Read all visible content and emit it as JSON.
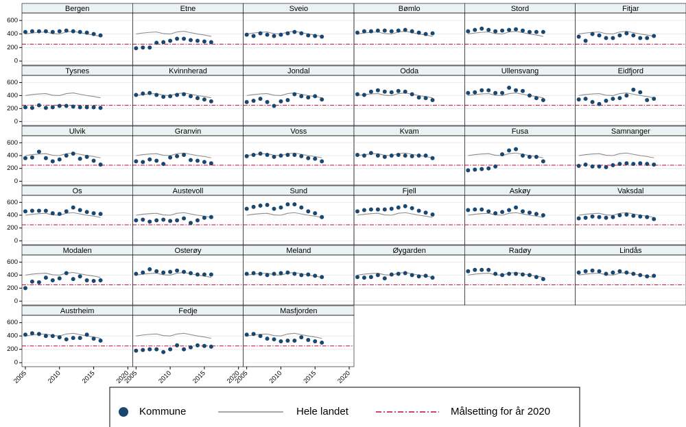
{
  "chart_data": {
    "type": "scatter",
    "x": [
      2005,
      2006,
      2007,
      2008,
      2009,
      2010,
      2011,
      2012,
      2013,
      2014,
      2015,
      2016
    ],
    "xlim": [
      2004.5,
      2020.7
    ],
    "xticks": [
      2005,
      2010,
      2015,
      2020
    ],
    "ylim": [
      -60,
      710
    ],
    "yticks": [
      0,
      200,
      400,
      600
    ],
    "grid": true,
    "series": [
      {
        "name": "Kommune",
        "color": "#1a476f"
      },
      {
        "name": "Hele landet",
        "color": "#8c8c8c",
        "values": [
          400,
          415,
          425,
          430,
          405,
          400,
          430,
          440,
          420,
          400,
          385,
          365
        ]
      },
      {
        "name": "Målsetting for år 2020",
        "color": "#c10534",
        "value": 250
      }
    ],
    "panels": [
      {
        "title": "Bergen",
        "values": [
          430,
          440,
          440,
          440,
          430,
          440,
          450,
          440,
          430,
          420,
          400,
          380
        ]
      },
      {
        "title": "Etne",
        "values": [
          190,
          200,
          200,
          270,
          280,
          300,
          330,
          330,
          310,
          300,
          290,
          280
        ]
      },
      {
        "title": "Sveio",
        "values": [
          390,
          370,
          410,
          390,
          370,
          390,
          410,
          430,
          410,
          380,
          370,
          360
        ]
      },
      {
        "title": "Bømlo",
        "values": [
          420,
          440,
          440,
          450,
          450,
          440,
          450,
          460,
          440,
          420,
          400,
          410
        ]
      },
      {
        "title": "Stord",
        "values": [
          440,
          460,
          480,
          460,
          440,
          450,
          460,
          470,
          450,
          430,
          430,
          430
        ]
      },
      {
        "title": "Fitjar",
        "values": [
          360,
          300,
          400,
          380,
          340,
          340,
          380,
          410,
          380,
          340,
          340,
          370
        ]
      },
      {
        "title": "Tysnes",
        "values": [
          220,
          210,
          250,
          210,
          220,
          240,
          240,
          230,
          220,
          220,
          220,
          210
        ]
      },
      {
        "title": "Kvinnherad",
        "values": [
          410,
          430,
          440,
          410,
          380,
          390,
          410,
          420,
          390,
          360,
          340,
          310
        ]
      },
      {
        "title": "Jondal",
        "values": [
          300,
          320,
          350,
          300,
          240,
          310,
          330,
          420,
          390,
          370,
          390,
          340
        ]
      },
      {
        "title": "Odda",
        "values": [
          420,
          410,
          460,
          480,
          460,
          450,
          470,
          460,
          420,
          370,
          360,
          330
        ]
      },
      {
        "title": "Ullensvang",
        "values": [
          440,
          450,
          480,
          480,
          440,
          440,
          520,
          480,
          470,
          400,
          360,
          330
        ]
      },
      {
        "title": "Eidfjord",
        "values": [
          340,
          350,
          300,
          270,
          320,
          350,
          360,
          400,
          490,
          450,
          330,
          350
        ]
      },
      {
        "title": "Ulvik",
        "values": [
          360,
          370,
          460,
          360,
          310,
          340,
          400,
          430,
          350,
          380,
          320,
          260
        ]
      },
      {
        "title": "Granvin",
        "values": [
          310,
          300,
          340,
          320,
          270,
          370,
          390,
          410,
          330,
          320,
          300,
          280
        ]
      },
      {
        "title": "Voss",
        "values": [
          390,
          410,
          430,
          410,
          380,
          400,
          410,
          410,
          390,
          360,
          350,
          310
        ]
      },
      {
        "title": "Kvam",
        "values": [
          410,
          400,
          440,
          400,
          380,
          400,
          410,
          400,
          390,
          400,
          400,
          360
        ]
      },
      {
        "title": "Fusa",
        "values": [
          170,
          180,
          190,
          200,
          230,
          420,
          480,
          500,
          400,
          380,
          380,
          310
        ]
      },
      {
        "title": "Samnanger",
        "values": [
          240,
          260,
          230,
          230,
          220,
          250,
          270,
          280,
          270,
          280,
          270,
          260
        ]
      },
      {
        "title": "Os",
        "values": [
          460,
          470,
          470,
          470,
          430,
          420,
          460,
          520,
          480,
          450,
          430,
          420
        ]
      },
      {
        "title": "Austevoll",
        "values": [
          320,
          330,
          300,
          320,
          330,
          310,
          320,
          350,
          280,
          320,
          360,
          370
        ]
      },
      {
        "title": "Sund",
        "values": [
          500,
          530,
          550,
          560,
          500,
          520,
          570,
          570,
          520,
          460,
          430,
          370
        ]
      },
      {
        "title": "Fjell",
        "values": [
          460,
          480,
          490,
          490,
          490,
          500,
          520,
          540,
          510,
          470,
          440,
          410
        ]
      },
      {
        "title": "Askøy",
        "values": [
          480,
          490,
          490,
          460,
          430,
          450,
          480,
          520,
          460,
          440,
          420,
          400
        ]
      },
      {
        "title": "Vaksdal",
        "values": [
          350,
          360,
          380,
          370,
          360,
          370,
          400,
          410,
          390,
          380,
          370,
          340
        ]
      },
      {
        "title": "Modalen",
        "values": [
          200,
          300,
          290,
          360,
          320,
          350,
          430,
          340,
          380,
          320,
          310,
          320
        ]
      },
      {
        "title": "Osterøy",
        "values": [
          420,
          440,
          490,
          460,
          440,
          450,
          470,
          450,
          430,
          410,
          410,
          410
        ]
      },
      {
        "title": "Meland",
        "values": [
          420,
          430,
          420,
          400,
          420,
          430,
          440,
          420,
          400,
          410,
          390,
          370
        ]
      },
      {
        "title": "Øygarden",
        "values": [
          370,
          360,
          370,
          400,
          350,
          410,
          420,
          430,
          400,
          380,
          390,
          360
        ]
      },
      {
        "title": "Radøy",
        "values": [
          460,
          480,
          480,
          480,
          420,
          400,
          420,
          420,
          410,
          400,
          370,
          340
        ]
      },
      {
        "title": "Lindås",
        "values": [
          440,
          460,
          470,
          460,
          420,
          440,
          460,
          440,
          420,
          400,
          380,
          390
        ]
      },
      {
        "title": "Austrheim",
        "values": [
          420,
          440,
          430,
          400,
          400,
          380,
          350,
          370,
          370,
          420,
          360,
          330
        ]
      },
      {
        "title": "Fedje",
        "values": [
          180,
          190,
          200,
          200,
          160,
          200,
          260,
          200,
          230,
          260,
          250,
          240
        ]
      },
      {
        "title": "Masfjorden",
        "values": [
          420,
          430,
          400,
          360,
          350,
          320,
          330,
          330,
          380,
          340,
          320,
          300
        ]
      }
    ]
  }
}
